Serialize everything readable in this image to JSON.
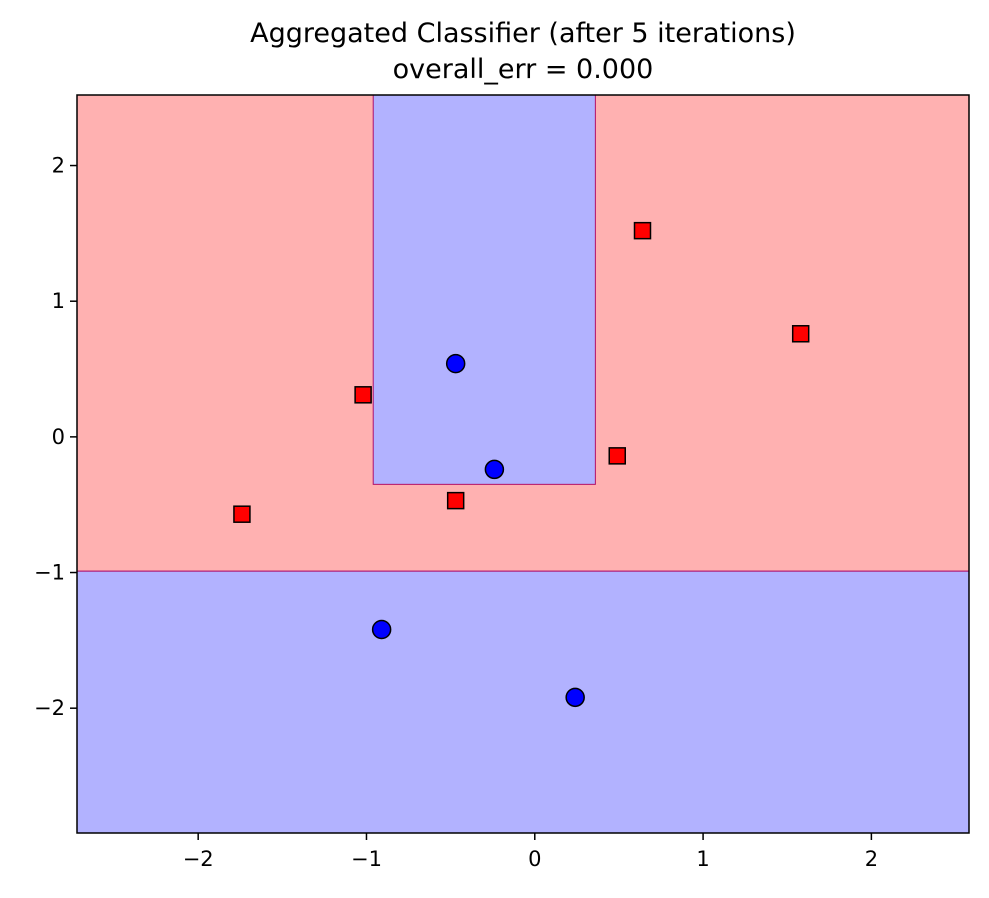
{
  "chart_data": {
    "type": "scatter",
    "title": "Aggregated Classifier (after 5 iterations)",
    "subtitle": "overall_err = 0.000",
    "xlabel": "",
    "ylabel": "",
    "xlim": [
      -2.72,
      2.58
    ],
    "ylim": [
      -2.92,
      2.52
    ],
    "x_ticks": [
      -2,
      -1,
      0,
      1,
      2
    ],
    "y_ticks": [
      -2,
      -1,
      0,
      1,
      2
    ],
    "x_tick_labels": [
      "−2",
      "−1",
      "0",
      "1",
      "2"
    ],
    "y_tick_labels": [
      "−2",
      "−1",
      "0",
      "1",
      "2"
    ],
    "grid": false,
    "colors": {
      "region_positive": "#ffb1b1",
      "region_negative": "#b2b2ff",
      "boundary": "#b0106a",
      "marker_positive": "#ff0000",
      "marker_negative": "#0000ff",
      "marker_edge": "#000000"
    },
    "regions": [
      {
        "class": "positive",
        "x": [
          -2.72,
          2.58
        ],
        "y": [
          -0.99,
          2.52
        ]
      },
      {
        "class": "negative",
        "x": [
          -0.96,
          0.36
        ],
        "y": [
          -0.35,
          2.52
        ]
      },
      {
        "class": "negative",
        "x": [
          -2.72,
          2.58
        ],
        "y": [
          -2.92,
          -0.99
        ]
      }
    ],
    "series": [
      {
        "marker": "square",
        "class": "positive",
        "x": [
          0.64,
          1.58,
          -1.02,
          0.49,
          -0.47,
          -1.74
        ],
        "y": [
          1.52,
          0.76,
          0.31,
          -0.14,
          -0.47,
          -0.57
        ]
      },
      {
        "marker": "circle",
        "class": "negative",
        "x": [
          -0.47,
          -0.24,
          -0.91,
          0.24
        ],
        "y": [
          0.54,
          -0.24,
          -1.42,
          -1.92
        ]
      }
    ]
  }
}
